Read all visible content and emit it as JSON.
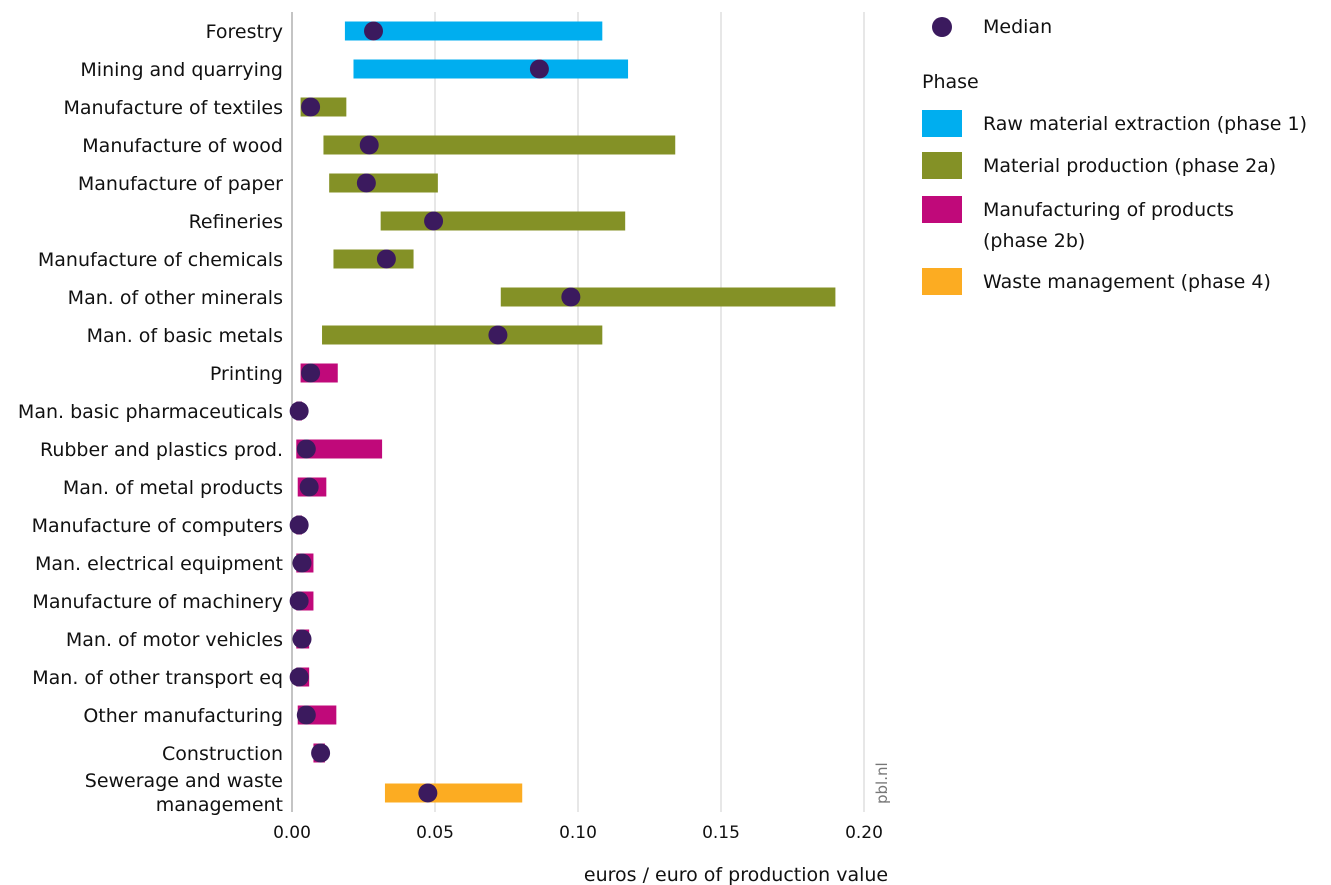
{
  "chart_data": {
    "type": "bar",
    "subtype": "range-bar-with-median",
    "xlabel": "euros / euro of production value",
    "xlim": [
      0,
      0.2
    ],
    "xticks": [
      "0.00",
      "0.05",
      "0.10",
      "0.15",
      "0.20"
    ],
    "grid": "vertical",
    "legend_position": "right",
    "watermark": "pbl.nl",
    "legend": {
      "median_label": "Median",
      "phase_title": "Phase",
      "phases": [
        {
          "key": "p1",
          "lines": [
            "Raw material extraction (phase 1)"
          ],
          "color": "#00aeef"
        },
        {
          "key": "p2a",
          "lines": [
            "Material production (phase 2a)"
          ],
          "color": "#849126"
        },
        {
          "key": "p2b",
          "lines": [
            "Manufacturing of products",
            "(phase 2b)"
          ],
          "color": "#c0097a"
        },
        {
          "key": "p4",
          "lines": [
            "Waste management (phase 4)"
          ],
          "color": "#fcac22"
        }
      ]
    },
    "median_color": "#3b1a5e",
    "categories": [
      {
        "lines": [
          "Forestry"
        ],
        "phase": "p1",
        "min": 0.0185,
        "max": 0.1085,
        "median": 0.0285
      },
      {
        "lines": [
          "Mining and quarrying"
        ],
        "phase": "p1",
        "min": 0.0215,
        "max": 0.1175,
        "median": 0.0865
      },
      {
        "lines": [
          "Manufacture of textiles"
        ],
        "phase": "p2a",
        "min": 0.003,
        "max": 0.019,
        "median": 0.0065
      },
      {
        "lines": [
          "Manufacture of wood"
        ],
        "phase": "p2a",
        "min": 0.011,
        "max": 0.134,
        "median": 0.027
      },
      {
        "lines": [
          "Manufacture of paper"
        ],
        "phase": "p2a",
        "min": 0.013,
        "max": 0.051,
        "median": 0.026
      },
      {
        "lines": [
          "Refineries"
        ],
        "phase": "p2a",
        "min": 0.031,
        "max": 0.1165,
        "median": 0.0495
      },
      {
        "lines": [
          "Manufacture of chemicals"
        ],
        "phase": "p2a",
        "min": 0.0145,
        "max": 0.0425,
        "median": 0.033
      },
      {
        "lines": [
          "Man. of other minerals"
        ],
        "phase": "p2a",
        "min": 0.073,
        "max": 0.19,
        "median": 0.0975
      },
      {
        "lines": [
          "Man. of basic metals"
        ],
        "phase": "p2a",
        "min": 0.0105,
        "max": 0.1085,
        "median": 0.072
      },
      {
        "lines": [
          "Printing"
        ],
        "phase": "p2b",
        "min": 0.003,
        "max": 0.016,
        "median": 0.0065
      },
      {
        "lines": [
          "Man. basic pharmaceuticals"
        ],
        "phase": "p2b",
        "min": 0.0015,
        "max": 0.0035,
        "median": 0.0025
      },
      {
        "lines": [
          "Rubber and plastics prod."
        ],
        "phase": "p2b",
        "min": 0.0015,
        "max": 0.0315,
        "median": 0.005
      },
      {
        "lines": [
          "Man. of metal products"
        ],
        "phase": "p2b",
        "min": 0.002,
        "max": 0.012,
        "median": 0.006
      },
      {
        "lines": [
          "Manufacture of computers"
        ],
        "phase": "p2b",
        "min": 0.0015,
        "max": 0.0035,
        "median": 0.0025
      },
      {
        "lines": [
          "Man. electrical equipment"
        ],
        "phase": "p2b",
        "min": 0.0015,
        "max": 0.0075,
        "median": 0.0035
      },
      {
        "lines": [
          "Manufacture of machinery"
        ],
        "phase": "p2b",
        "min": 0.0015,
        "max": 0.0075,
        "median": 0.0025
      },
      {
        "lines": [
          "Man. of motor vehicles"
        ],
        "phase": "p2b",
        "min": 0.0015,
        "max": 0.006,
        "median": 0.0035
      },
      {
        "lines": [
          "Man. of other transport eq"
        ],
        "phase": "p2b",
        "min": 0.0015,
        "max": 0.006,
        "median": 0.0025
      },
      {
        "lines": [
          "Other manufacturing"
        ],
        "phase": "p2b",
        "min": 0.002,
        "max": 0.0155,
        "median": 0.005
      },
      {
        "lines": [
          "Construction"
        ],
        "phase": "p2b",
        "min": 0.0075,
        "max": 0.0115,
        "median": 0.01
      },
      {
        "lines": [
          "Sewerage and waste",
          "management"
        ],
        "phase": "p4",
        "min": 0.0325,
        "max": 0.0805,
        "median": 0.0475
      }
    ]
  }
}
